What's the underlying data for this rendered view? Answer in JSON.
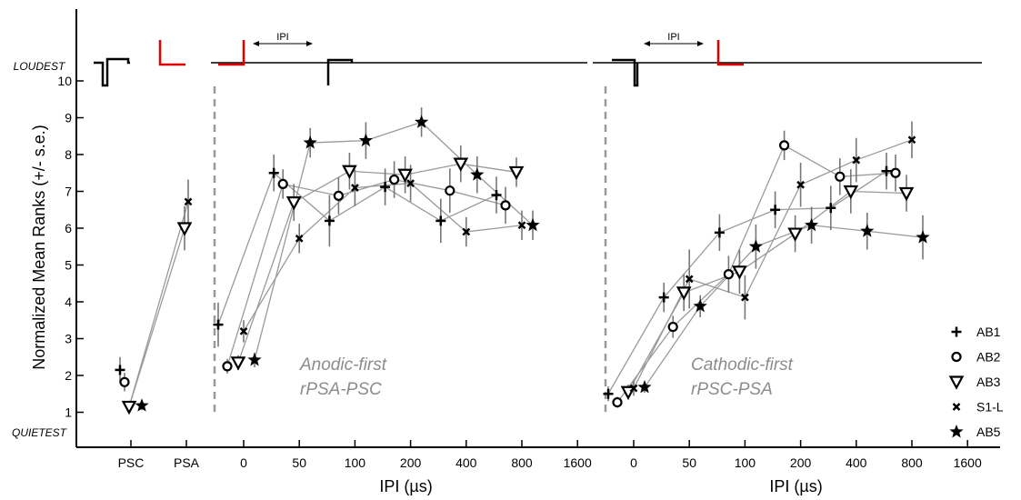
{
  "chart_data": {
    "type": "scatter",
    "ylabel": "Normalized Mean Ranks (+/- s.e.)",
    "xlabel": "IPI (µs)",
    "ylim": [
      1,
      10
    ],
    "y_ticks": [
      1,
      2,
      3,
      4,
      5,
      6,
      7,
      8,
      9,
      10
    ],
    "y_top_label": "LOUDEST",
    "y_bottom_label": "QUIETEST",
    "control_categories": [
      "PSC",
      "PSA"
    ],
    "ipi_ticks": [
      0,
      50,
      100,
      200,
      400,
      800,
      1600
    ],
    "ipi_tick_labels": [
      "0",
      "50",
      "100",
      "200",
      "400",
      "800",
      "1600"
    ],
    "pulse_label": "IPI",
    "regions": [
      {
        "key": "anodic",
        "label_line1": "Anodic-first",
        "label_line2": "rPSA-PSC"
      },
      {
        "key": "cathodic",
        "label_line1": "Cathodic-first",
        "label_line2": "rPSC-PSA"
      }
    ],
    "series": [
      {
        "name": "AB1",
        "marker": "plus",
        "controls": [
          {
            "x": "PSC",
            "y": 2.15,
            "err": 0.35
          }
        ],
        "anodic": [
          {
            "x": 0,
            "y": 3.38,
            "err": 0.6
          },
          {
            "x": 50,
            "y": 7.5,
            "err": 0.5
          },
          {
            "x": 100,
            "y": 6.2,
            "err": 0.7
          },
          {
            "x": 200,
            "y": 7.12,
            "err": 0.5
          },
          {
            "x": 400,
            "y": 6.2,
            "err": 0.6
          },
          {
            "x": 800,
            "y": 6.9,
            "err": 0.5
          }
        ],
        "cathodic": [
          {
            "x": 0,
            "y": 1.5,
            "err": 0.2
          },
          {
            "x": 50,
            "y": 4.12,
            "err": 0.4
          },
          {
            "x": 100,
            "y": 5.88,
            "err": 0.5
          },
          {
            "x": 200,
            "y": 6.5,
            "err": 0.5
          },
          {
            "x": 400,
            "y": 6.55,
            "err": 0.6
          },
          {
            "x": 800,
            "y": 7.55,
            "err": 0.5
          }
        ]
      },
      {
        "name": "AB2",
        "marker": "circle",
        "controls": [
          {
            "x": "PSC",
            "y": 1.82,
            "err": 0.25
          }
        ],
        "anodic": [
          {
            "x": 0,
            "y": 2.25,
            "err": 0.2
          },
          {
            "x": 50,
            "y": 7.2,
            "err": 0.4
          },
          {
            "x": 100,
            "y": 6.88,
            "err": 0.5
          },
          {
            "x": 200,
            "y": 7.32,
            "err": 0.5
          },
          {
            "x": 400,
            "y": 7.02,
            "err": 0.6
          },
          {
            "x": 800,
            "y": 6.62,
            "err": 0.5
          }
        ],
        "cathodic": [
          {
            "x": 0,
            "y": 1.27,
            "err": 0.15
          },
          {
            "x": 50,
            "y": 3.32,
            "err": 0.3
          },
          {
            "x": 100,
            "y": 4.75,
            "err": 0.5
          },
          {
            "x": 200,
            "y": 8.25,
            "err": 0.4
          },
          {
            "x": 400,
            "y": 7.4,
            "err": 0.5
          },
          {
            "x": 800,
            "y": 7.5,
            "err": 0.5
          }
        ]
      },
      {
        "name": "AB3",
        "marker": "triangle-down",
        "controls": [
          {
            "x": "PSC",
            "y": 1.15,
            "err": 0.15
          },
          {
            "x": "PSA",
            "y": 6.0,
            "err": 0.6
          }
        ],
        "anodic": [
          {
            "x": 0,
            "y": 2.35,
            "err": 0.2
          },
          {
            "x": 50,
            "y": 6.7,
            "err": 0.5
          },
          {
            "x": 100,
            "y": 7.55,
            "err": 0.5
          },
          {
            "x": 200,
            "y": 7.45,
            "err": 0.5
          },
          {
            "x": 400,
            "y": 7.75,
            "err": 0.5
          },
          {
            "x": 800,
            "y": 7.52,
            "err": 0.4
          }
        ],
        "cathodic": [
          {
            "x": 0,
            "y": 1.55,
            "err": 0.2
          },
          {
            "x": 50,
            "y": 4.25,
            "err": 0.5
          },
          {
            "x": 100,
            "y": 4.82,
            "err": 0.6
          },
          {
            "x": 200,
            "y": 5.85,
            "err": 0.5
          },
          {
            "x": 400,
            "y": 7.0,
            "err": 0.6
          },
          {
            "x": 800,
            "y": 6.95,
            "err": 0.5
          }
        ]
      },
      {
        "name": "S1-L",
        "marker": "x",
        "controls": [
          {
            "x": "PSA",
            "y": 6.72,
            "err": 0.6
          }
        ],
        "anodic": [
          {
            "x": 0,
            "y": 3.2,
            "err": 0.3
          },
          {
            "x": 50,
            "y": 5.72,
            "err": 0.4
          },
          {
            "x": 100,
            "y": 7.1,
            "err": 0.5
          },
          {
            "x": 200,
            "y": 7.22,
            "err": 0.5
          },
          {
            "x": 400,
            "y": 5.9,
            "err": 0.4
          },
          {
            "x": 800,
            "y": 6.08,
            "err": 0.4
          }
        ],
        "cathodic": [
          {
            "x": 0,
            "y": 1.65,
            "err": 0.2
          },
          {
            "x": 50,
            "y": 4.62,
            "err": 0.8
          },
          {
            "x": 100,
            "y": 4.12,
            "err": 0.6
          },
          {
            "x": 200,
            "y": 7.18,
            "err": 0.6
          },
          {
            "x": 400,
            "y": 7.85,
            "err": 0.6
          },
          {
            "x": 800,
            "y": 8.4,
            "err": 0.5
          }
        ]
      },
      {
        "name": "AB5",
        "marker": "star",
        "controls": [
          {
            "x": "PSC",
            "y": 1.18,
            "err": 0.12
          }
        ],
        "anodic": [
          {
            "x": 0,
            "y": 2.42,
            "err": 0.2
          },
          {
            "x": 50,
            "y": 8.32,
            "err": 0.4
          },
          {
            "x": 100,
            "y": 8.38,
            "err": 0.5
          },
          {
            "x": 200,
            "y": 8.88,
            "err": 0.4
          },
          {
            "x": 400,
            "y": 7.45,
            "err": 0.5
          },
          {
            "x": 800,
            "y": 6.08,
            "err": 0.4
          }
        ],
        "cathodic": [
          {
            "x": 0,
            "y": 1.68,
            "err": 0.15
          },
          {
            "x": 50,
            "y": 3.88,
            "err": 0.3
          },
          {
            "x": 100,
            "y": 5.5,
            "err": 0.6
          },
          {
            "x": 200,
            "y": 6.08,
            "err": 0.5
          },
          {
            "x": 400,
            "y": 5.92,
            "err": 0.5
          },
          {
            "x": 800,
            "y": 5.75,
            "err": 0.6
          }
        ]
      }
    ],
    "colors": {
      "connector": "#9a9a9a",
      "error_bar": "#777777",
      "marker": "#000000",
      "divider": "#999999",
      "waveform_primary": "#000000",
      "waveform_secondary": "#e00000",
      "region_label": "#8c8c8c"
    }
  }
}
